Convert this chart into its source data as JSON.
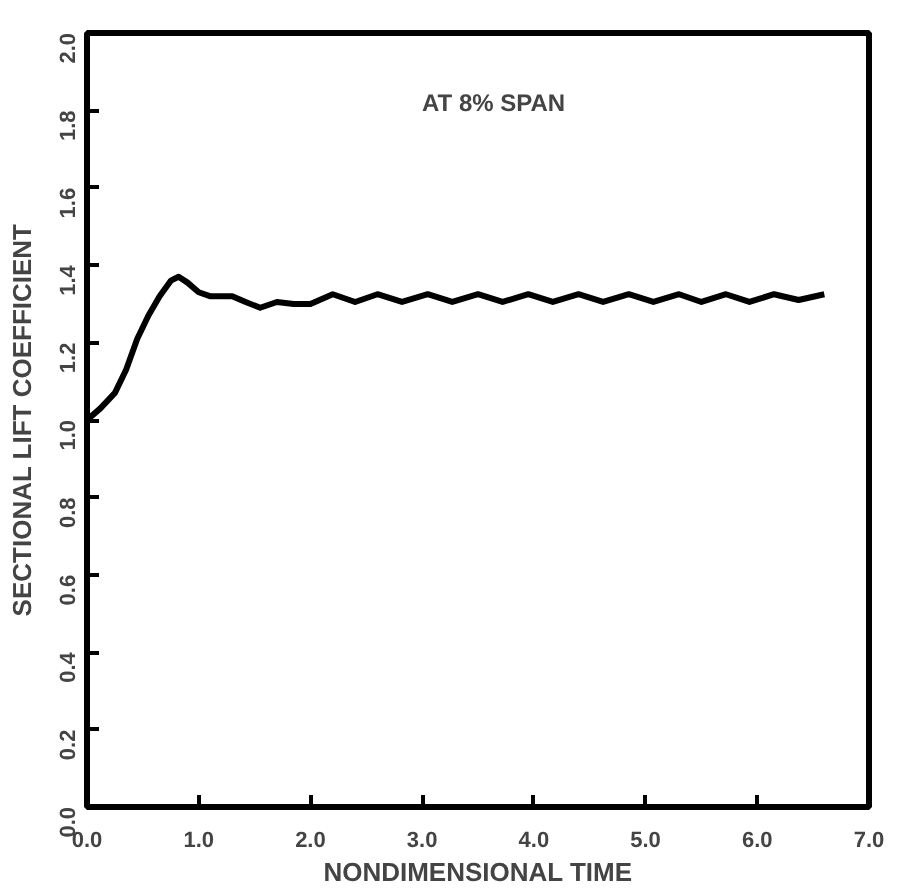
{
  "chart_data": {
    "type": "line",
    "xlabel": "NONDIMENSIONAL TIME",
    "ylabel": "SECTIONAL LIFT COEFFICIENT",
    "annotations": [
      "AT 8% SPAN"
    ],
    "xlim": [
      0,
      7
    ],
    "ylim": [
      0,
      2
    ],
    "xticks": [
      {
        "value": 0,
        "label": "0.0"
      },
      {
        "value": 1,
        "label": "1.0"
      },
      {
        "value": 2,
        "label": "2.0"
      },
      {
        "value": 3,
        "label": "3.0"
      },
      {
        "value": 4,
        "label": "4.0"
      },
      {
        "value": 5,
        "label": "5.0"
      },
      {
        "value": 6,
        "label": "6.0"
      },
      {
        "value": 7,
        "label": "7.0"
      }
    ],
    "yticks": [
      {
        "value": 0,
        "label": "0.0"
      },
      {
        "value": 0.2,
        "label": "0.2"
      },
      {
        "value": 0.4,
        "label": "0.4"
      },
      {
        "value": 0.6,
        "label": "0.6"
      },
      {
        "value": 0.8,
        "label": "0.8"
      },
      {
        "value": 1,
        "label": "1.0"
      },
      {
        "value": 1.2,
        "label": "1.2"
      },
      {
        "value": 1.4,
        "label": "1.4"
      },
      {
        "value": 1.6,
        "label": "1.6"
      },
      {
        "value": 1.8,
        "label": "1.8"
      },
      {
        "value": 2,
        "label": "2.0"
      }
    ],
    "grid": false,
    "line_style": "solid",
    "series": [
      {
        "color": "#000000",
        "x": [
          0,
          0.12,
          0.25,
          0.35,
          0.45,
          0.55,
          0.65,
          0.75,
          0.82,
          0.9,
          1.0,
          1.1,
          1.3,
          1.42,
          1.55,
          1.7,
          1.85,
          2.0,
          2.2,
          2.4,
          2.6,
          2.82,
          3.05,
          3.27,
          3.5,
          3.72,
          3.95,
          4.17,
          4.4,
          4.62,
          4.85,
          5.07,
          5.3,
          5.5,
          5.72,
          5.93,
          6.15,
          6.37,
          6.6
        ],
        "values": [
          1.0,
          1.03,
          1.07,
          1.13,
          1.21,
          1.27,
          1.32,
          1.36,
          1.37,
          1.355,
          1.33,
          1.32,
          1.32,
          1.305,
          1.29,
          1.305,
          1.3,
          1.3,
          1.325,
          1.305,
          1.325,
          1.305,
          1.325,
          1.305,
          1.325,
          1.305,
          1.325,
          1.305,
          1.325,
          1.305,
          1.325,
          1.305,
          1.325,
          1.305,
          1.325,
          1.305,
          1.325,
          1.31,
          1.325
        ]
      }
    ]
  }
}
